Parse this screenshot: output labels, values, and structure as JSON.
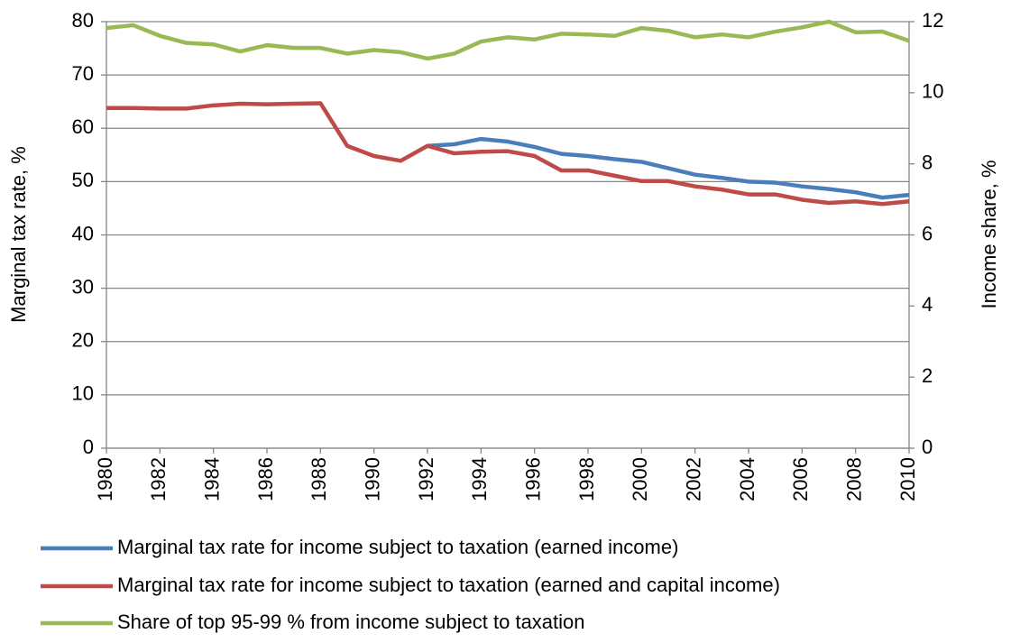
{
  "chart_data": {
    "type": "line",
    "y_label": "Marginal tax rate, %",
    "y2_label": "Income share, %",
    "x": [
      1980,
      1981,
      1982,
      1983,
      1984,
      1985,
      1986,
      1987,
      1988,
      1989,
      1990,
      1991,
      1992,
      1993,
      1994,
      1995,
      1996,
      1997,
      1998,
      1999,
      2000,
      2001,
      2002,
      2003,
      2004,
      2005,
      2006,
      2007,
      2008,
      2009,
      2010
    ],
    "xlim": [
      1980,
      2010
    ],
    "xticks": [
      1980,
      1982,
      1984,
      1986,
      1988,
      1990,
      1992,
      1994,
      1996,
      1998,
      2000,
      2002,
      2004,
      2006,
      2008,
      2010
    ],
    "ylim": [
      0,
      80
    ],
    "yticks": [
      0,
      10,
      20,
      30,
      40,
      50,
      60,
      70,
      80
    ],
    "y2lim": [
      0,
      12
    ],
    "y2ticks": [
      0,
      2,
      4,
      6,
      8,
      10,
      12
    ],
    "grid": true,
    "legend": "bottom",
    "series": [
      {
        "name": "Marginal tax rate for income subject to taxation (earned income)",
        "color": "#4a7ebb",
        "values": [
          null,
          null,
          null,
          null,
          null,
          null,
          null,
          null,
          null,
          null,
          null,
          null,
          56.7,
          57,
          58,
          57.5,
          56.5,
          55.2,
          54.8,
          54.2,
          53.7,
          52.5,
          51.3,
          50.7,
          50,
          49.8,
          49.1,
          48.6,
          48,
          47,
          47.5
        ]
      },
      {
        "name": "Marginal tax rate for income subject to taxation (earned and capital income)",
        "color": "#be4b48",
        "values": [
          63.8,
          63.8,
          63.7,
          63.7,
          64.3,
          64.6,
          64.5,
          64.6,
          64.7,
          56.7,
          54.8,
          53.9,
          56.7,
          55.3,
          55.6,
          55.7,
          54.8,
          52.1,
          52.1,
          51.1,
          50.1,
          50.1,
          49.1,
          48.5,
          47.6,
          47.6,
          46.6,
          46,
          46.3,
          45.8,
          46.3
        ]
      },
      {
        "name": "Share of top 95-99 % from income subject to taxation",
        "color": "#98b954",
        "axis": "y2",
        "values": [
          11.82,
          11.9,
          11.6,
          11.4,
          11.36,
          11.16,
          11.34,
          11.26,
          11.26,
          11.1,
          11.2,
          11.14,
          10.96,
          11.1,
          11.44,
          11.56,
          11.5,
          11.66,
          11.64,
          11.6,
          11.82,
          11.74,
          11.56,
          11.64,
          11.56,
          11.72,
          11.84,
          12.0,
          11.7,
          11.72,
          11.46
        ]
      }
    ]
  }
}
